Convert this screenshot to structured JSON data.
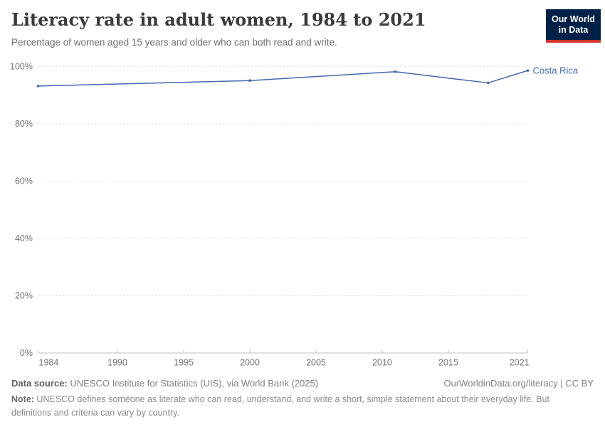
{
  "header": {
    "title": "Literacy rate in adult women, 1984 to 2021",
    "subtitle": "Percentage of women aged 15 years and older who can both read and write."
  },
  "logo": {
    "line1": "Our World",
    "line2": "in Data"
  },
  "chart_data": {
    "type": "line",
    "title": "Literacy rate in adult women, 1984 to 2021",
    "x": [
      1984,
      2000,
      2011,
      2018,
      2021
    ],
    "series": [
      {
        "name": "Costa Rica",
        "values": [
          93.2,
          95.1,
          98.2,
          94.3,
          98.6
        ],
        "color": "#4268ab"
      }
    ],
    "xlabel": "",
    "ylabel": "",
    "xlim": [
      1984,
      2021
    ],
    "ylim": [
      0,
      100
    ],
    "x_ticks": [
      1984,
      1990,
      1995,
      2000,
      2005,
      2010,
      2015,
      2021
    ],
    "x_tick_labels": [
      "1984",
      "1990",
      "1995",
      "2000",
      "2005",
      "2010",
      "2015",
      "2021"
    ],
    "y_ticks": [
      0,
      20,
      40,
      60,
      80,
      100
    ],
    "y_tick_labels": [
      "0%",
      "20%",
      "40%",
      "60%",
      "80%",
      "100%"
    ],
    "grid": "horizontal-dashed",
    "legend": "line-end-label",
    "entity_label": "Costa Rica"
  },
  "footer": {
    "data_source_label": "Data source:",
    "data_source_text": " UNESCO Institute for Statistics (UIS), via World Bank (2025)",
    "link_text": "OurWorldinData.org/literacy | CC BY",
    "note_label": "Note:",
    "note_text": " UNESCO defines someone as literate who can read, understand, and write a short, simple statement about their everyday life. But definitions and criteria can vary by country."
  },
  "colors": {
    "line": "#4268ab",
    "logo_navy": "#002147",
    "logo_red": "#d0342b",
    "gridline": "#dcdcdc",
    "axis": "#c2c2c2",
    "tick_text": "#737373",
    "title_text": "#3a3a3a",
    "subtitle_text": "#6e6e6e"
  }
}
